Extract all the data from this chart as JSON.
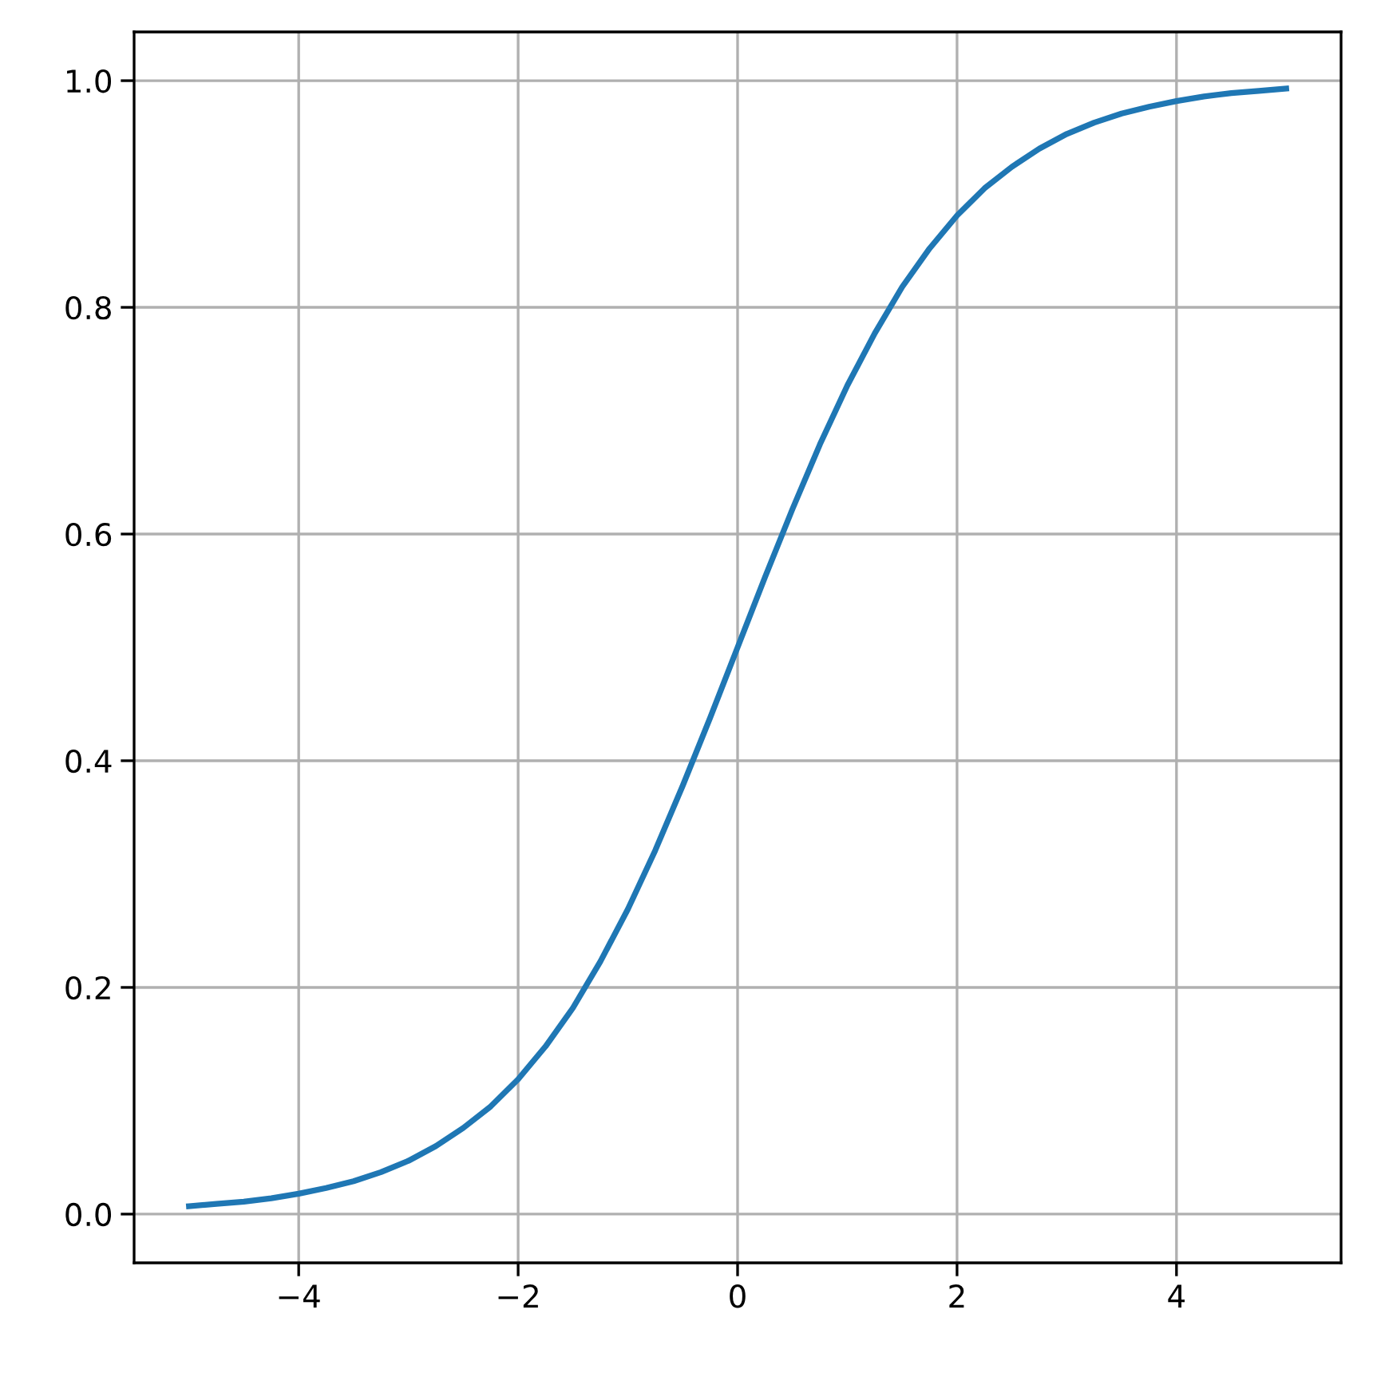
{
  "chart_data": {
    "type": "line",
    "x": [
      -5,
      -4.75,
      -4.5,
      -4.25,
      -4,
      -3.75,
      -3.5,
      -3.25,
      -3,
      -2.75,
      -2.5,
      -2.25,
      -2,
      -1.75,
      -1.5,
      -1.25,
      -1,
      -0.75,
      -0.5,
      -0.25,
      0,
      0.25,
      0.5,
      0.75,
      1,
      1.25,
      1.5,
      1.75,
      2,
      2.25,
      2.5,
      2.75,
      3,
      3.25,
      3.5,
      3.75,
      4,
      4.25,
      4.5,
      4.75,
      5
    ],
    "series": [
      {
        "color": "#1f77b4",
        "values": [
          0.007,
          0.009,
          0.011,
          0.014,
          0.018,
          0.023,
          0.029,
          0.037,
          0.047,
          0.06,
          0.076,
          0.095,
          0.119,
          0.148,
          0.182,
          0.223,
          0.269,
          0.321,
          0.378,
          0.438,
          0.5,
          0.562,
          0.622,
          0.679,
          0.731,
          0.777,
          0.818,
          0.852,
          0.881,
          0.905,
          0.924,
          0.94,
          0.953,
          0.963,
          0.971,
          0.977,
          0.982,
          0.986,
          0.989,
          0.991,
          0.993
        ]
      }
    ],
    "xlim": [
      -5.5,
      5.5
    ],
    "ylim": [
      -0.043,
      1.043
    ],
    "xticks": [
      {
        "value": -4,
        "label": "−4"
      },
      {
        "value": -2,
        "label": "−2"
      },
      0,
      2,
      4
    ],
    "yticks": [
      {
        "value": 0,
        "label": "0.0"
      },
      0.2,
      0.4,
      0.6,
      0.8,
      {
        "value": 1,
        "label": "1.0"
      }
    ],
    "grid": true,
    "marker": "none",
    "line_style": "solid",
    "legend": false
  }
}
